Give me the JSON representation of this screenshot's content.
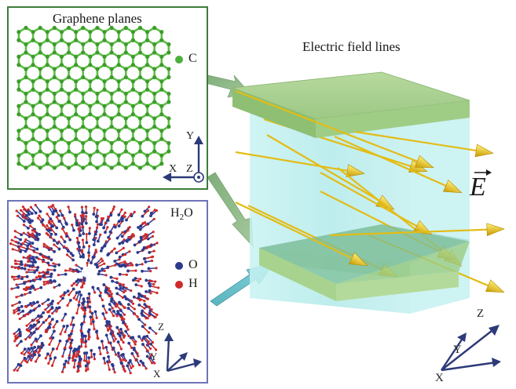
{
  "graphene_panel": {
    "title": "Graphene planes",
    "legend_label": "C",
    "legend_color": "#4caf3a"
  },
  "water_panel": {
    "title_main": "H",
    "title_sub": "2",
    "title_tail": "O",
    "legend": [
      {
        "label": "O",
        "color": "#2b3a8c"
      },
      {
        "label": "H",
        "color": "#d02a2a"
      }
    ]
  },
  "field_label": "Electric field lines",
  "field_symbol": "E",
  "axes_graphene": {
    "y": "Y",
    "x": "X",
    "z": "Z"
  },
  "axes_water": {
    "z": "Z",
    "y": "Y",
    "x": "X"
  },
  "axes_main": {
    "z": "Z",
    "y": "Y",
    "x": "X"
  },
  "colors": {
    "graphene_green": "#4caf3a",
    "panel_border_green": "#3d7d3a",
    "panel_border_blue": "#6e74b8",
    "plate_green": "#a8cf8e",
    "water_cyan": "#bfeeee",
    "arrow_gold": "#e8c21a",
    "axis_navy": "#2c3a78"
  }
}
